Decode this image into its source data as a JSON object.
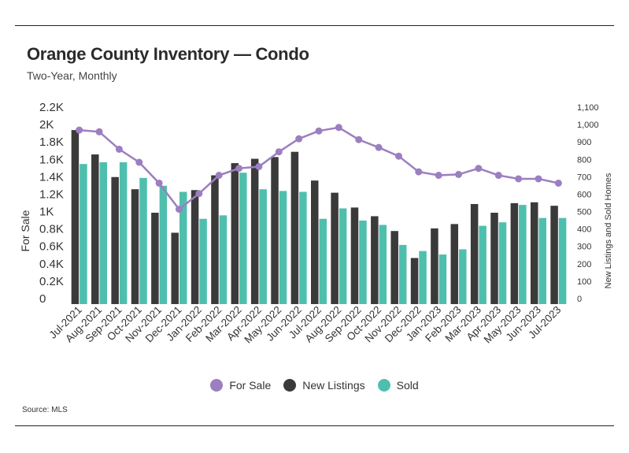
{
  "colors": {
    "for_sale": "#9b7fc0",
    "new_listings": "#3a3a3a",
    "sold": "#4fbfad"
  },
  "source": "Source: MLS",
  "chart_data": {
    "type": "bar",
    "title": "Orange County Inventory — Condo",
    "subtitle": "Two-Year, Monthly",
    "categories": [
      "Jul-2021",
      "Aug-2021",
      "Sep-2021",
      "Oct-2021",
      "Nov-2021",
      "Dec-2021",
      "Jan-2022",
      "Feb-2022",
      "Mar-2022",
      "Apr-2022",
      "May-2022",
      "Jun-2022",
      "Jul-2022",
      "Aug-2022",
      "Sep-2022",
      "Oct-2022",
      "Nov-2022",
      "Dec-2022",
      "Jan-2023",
      "Feb-2023",
      "Mar-2023",
      "Apr-2023",
      "May-2023",
      "Jun-2023",
      "Jul-2023"
    ],
    "ylabel_left": "For Sale",
    "ylabel_right": "New Listings and Sold Homes",
    "ylim_left": [
      0,
      2200
    ],
    "yticks_left": [
      "0",
      "0.2K",
      "0.4K",
      "0.6K",
      "0.8K",
      "1K",
      "1.2K",
      "1.4K",
      "1.6K",
      "1.8K",
      "2K",
      "2.2K"
    ],
    "ylim_right": [
      0,
      1100
    ],
    "yticks_right": [
      "0",
      "100",
      "200",
      "300",
      "400",
      "500",
      "600",
      "700",
      "800",
      "900",
      "1,000",
      "1,100"
    ],
    "series": [
      {
        "name": "For Sale",
        "kind": "line",
        "axis": "left",
        "values": [
          2000,
          1980,
          1780,
          1630,
          1390,
          1090,
          1270,
          1480,
          1560,
          1580,
          1750,
          1900,
          1990,
          2030,
          1890,
          1800,
          1700,
          1520,
          1480,
          1490,
          1560,
          1480,
          1440,
          1440,
          1390
        ]
      },
      {
        "name": "New Listings",
        "kind": "bar",
        "axis": "right",
        "values": [
          1000,
          860,
          730,
          660,
          525,
          410,
          655,
          740,
          810,
          835,
          845,
          875,
          710,
          640,
          555,
          505,
          420,
          265,
          435,
          460,
          575,
          525,
          580,
          585,
          565
        ]
      },
      {
        "name": "Sold",
        "kind": "bar",
        "axis": "right",
        "values": [
          805,
          815,
          815,
          725,
          680,
          645,
          490,
          510,
          755,
          660,
          650,
          645,
          490,
          550,
          480,
          455,
          340,
          305,
          285,
          315,
          450,
          470,
          570,
          495,
          495
        ]
      }
    ]
  }
}
